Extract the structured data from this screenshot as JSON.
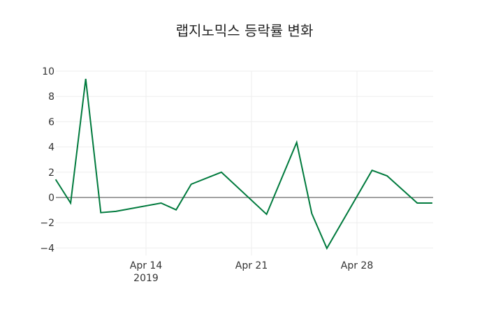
{
  "title": "랩지노믹스 등락률 변화",
  "chart_data": {
    "type": "line",
    "title": "랩지노믹스 등락률 변화",
    "xlabel": "",
    "ylabel": "",
    "x": [
      "2019-04-08",
      "2019-04-09",
      "2019-04-10",
      "2019-04-11",
      "2019-04-12",
      "2019-04-15",
      "2019-04-16",
      "2019-04-17",
      "2019-04-19",
      "2019-04-22",
      "2019-04-24",
      "2019-04-25",
      "2019-04-26",
      "2019-04-29",
      "2019-04-30",
      "2019-05-02",
      "2019-05-03"
    ],
    "series": [
      {
        "name": "등락률",
        "color": "#007a3d",
        "values": [
          1.43,
          -0.44,
          9.39,
          -1.2,
          -1.1,
          -0.44,
          -0.98,
          1.05,
          2.0,
          -1.33,
          4.36,
          -1.27,
          -4.03,
          2.15,
          1.71,
          -0.44,
          -0.44
        ]
      }
    ],
    "ylim": [
      -4.5,
      10.5
    ],
    "yticks": [
      -4,
      -2,
      0,
      2,
      4,
      6,
      8,
      10
    ],
    "ytick_labels": [
      "−4",
      "−2",
      "0",
      "2",
      "4",
      "6",
      "8",
      "10"
    ],
    "xticks": [
      {
        "date": "2019-04-14",
        "label": "Apr 14",
        "sublabel": "2019"
      },
      {
        "date": "2019-04-21",
        "label": "Apr 21",
        "sublabel": ""
      },
      {
        "date": "2019-04-28",
        "label": "Apr 28",
        "sublabel": ""
      }
    ],
    "grid": true,
    "zero_line": true,
    "legend": false
  }
}
